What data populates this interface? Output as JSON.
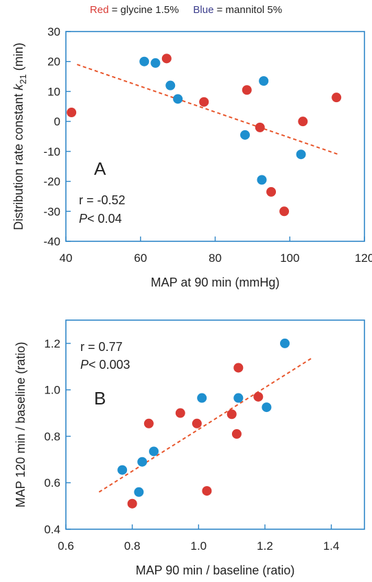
{
  "legend": {
    "red_word": "Red",
    "red_text": "= glycine 1.5%",
    "blue_word": "Blue",
    "blue_text": "= mannitol 5%",
    "colors": {
      "red": "#d93a34",
      "blue": "#1e8fcf",
      "frame": "#2e86c8",
      "trend": "#e8562c"
    }
  },
  "chart_data": [
    {
      "type": "scatter",
      "panel_label": "A",
      "xlabel": "MAP at 90 min (mmHg)",
      "ylabel_main": "Distribution rate constant  ",
      "ylabel_symbol": "k",
      "ylabel_sub": "21",
      "ylabel_unit": " (min)",
      "xlim": [
        40,
        120
      ],
      "ylim": [
        -40,
        30
      ],
      "xticks": [
        40,
        60,
        80,
        100,
        120
      ],
      "yticks": [
        -40,
        -30,
        -20,
        -10,
        0,
        10,
        20,
        30
      ],
      "stats": {
        "r": "r = -0.52",
        "p_symbol": "P",
        "p_value": "< 0.04"
      },
      "trend": {
        "x": [
          43,
          113
        ],
        "y": [
          19,
          -11
        ]
      },
      "series": [
        {
          "name": "Red",
          "color": "red",
          "points": [
            [
              41.5,
              3
            ],
            [
              67,
              21
            ],
            [
              77,
              6.5
            ],
            [
              88.5,
              10.5
            ],
            [
              92,
              -2
            ],
            [
              95,
              -23.5
            ],
            [
              98.5,
              -30
            ],
            [
              103.5,
              0
            ],
            [
              112.5,
              8
            ]
          ]
        },
        {
          "name": "Blue",
          "color": "blue",
          "points": [
            [
              61,
              20
            ],
            [
              64,
              19.5
            ],
            [
              68,
              12
            ],
            [
              70,
              7.5
            ],
            [
              88,
              -4.5
            ],
            [
              92.5,
              -19.5
            ],
            [
              93,
              13.5
            ],
            [
              103,
              -11
            ]
          ]
        }
      ]
    },
    {
      "type": "scatter",
      "panel_label": "B",
      "xlabel": "MAP 90 min / baseline (ratio)",
      "ylabel_main": "MAP 120 min / baseline (ratio)",
      "xlim": [
        0.6,
        1.5
      ],
      "ylim": [
        0.4,
        1.3
      ],
      "xticks": [
        "0.6",
        "0.8",
        "1.0",
        "1.2",
        "1.4"
      ],
      "yticks": [
        "0.4",
        "0.6",
        "0.8",
        "1.0",
        "1.2"
      ],
      "stats": {
        "r": "r = 0.77",
        "p_symbol": "P",
        "p_value": "< 0.003"
      },
      "trend": {
        "x": [
          0.7,
          1.345
        ],
        "y": [
          0.56,
          1.14
        ]
      },
      "series": [
        {
          "name": "Red",
          "color": "red",
          "points": [
            [
              0.8,
              0.51
            ],
            [
              0.85,
              0.855
            ],
            [
              0.945,
              0.9
            ],
            [
              0.995,
              0.855
            ],
            [
              1.025,
              0.565
            ],
            [
              1.1,
              0.895
            ],
            [
              1.115,
              0.81
            ],
            [
              1.12,
              1.095
            ],
            [
              1.18,
              0.97
            ]
          ]
        },
        {
          "name": "Blue",
          "color": "blue",
          "points": [
            [
              0.77,
              0.655
            ],
            [
              0.82,
              0.56
            ],
            [
              0.83,
              0.69
            ],
            [
              0.865,
              0.735
            ],
            [
              1.01,
              0.965
            ],
            [
              1.12,
              0.965
            ],
            [
              1.205,
              0.925
            ],
            [
              1.26,
              1.2
            ]
          ]
        }
      ]
    }
  ]
}
